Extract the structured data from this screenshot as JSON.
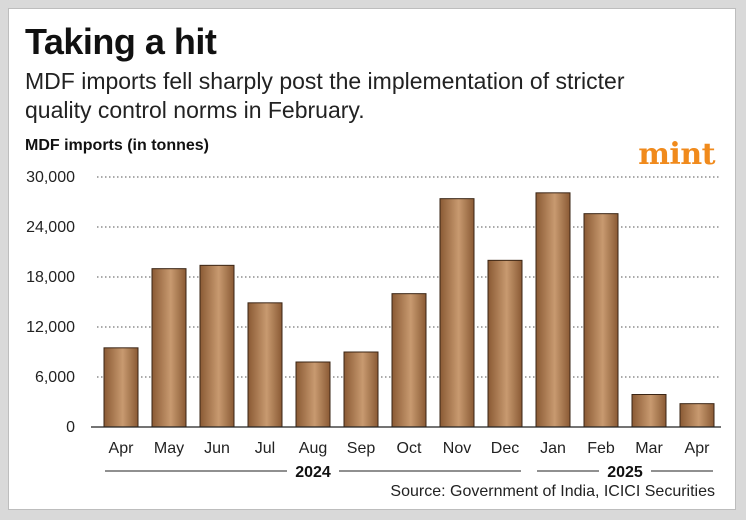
{
  "title": "Taking a hit",
  "subtitle": "MDF imports fell sharply post the implementation of stricter quality control norms in February.",
  "axis_title": "MDF imports (in tonnes)",
  "logo_text": "mint",
  "source": "Source: Government of India, ICICI Securities",
  "colors": {
    "bar_dark": "#8a5a34",
    "bar_light": "#c89a70",
    "bar_edge": "#3a2414",
    "accent": "#f08a1c"
  },
  "chart_data": {
    "type": "bar",
    "title": "Taking a hit",
    "ylabel": "MDF imports (in tonnes)",
    "categories": [
      "Apr",
      "May",
      "Jun",
      "Jul",
      "Aug",
      "Sep",
      "Oct",
      "Nov",
      "Dec",
      "Jan",
      "Feb",
      "Mar",
      "Apr"
    ],
    "values": [
      9500,
      19000,
      19400,
      14900,
      7800,
      9000,
      16000,
      27400,
      20000,
      28100,
      25600,
      3900,
      2800
    ],
    "ylim": [
      0,
      30000
    ],
    "yticks": [
      0,
      6000,
      12000,
      18000,
      24000,
      30000
    ],
    "ytick_labels": [
      "0",
      "6,000",
      "12,000",
      "18,000",
      "24,000",
      "30,000"
    ],
    "grid": true,
    "year_groups": [
      {
        "label": "2024",
        "start": 0,
        "end": 8
      },
      {
        "label": "2025",
        "start": 9,
        "end": 12
      }
    ]
  }
}
